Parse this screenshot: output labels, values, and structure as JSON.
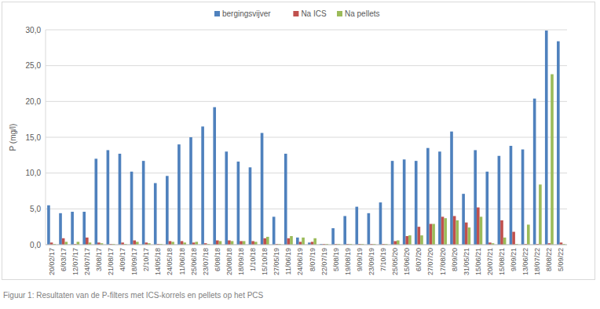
{
  "chart_data": {
    "type": "bar",
    "y_label": "P (mg/l)",
    "caption": "Figuur 1: Resultaten van de P-filters met ICS-korrels en pellets op het PCS",
    "categories": [
      "20/02/17",
      "6/03/17",
      "12/07/17",
      "24/07/17",
      "3/08/17",
      "21/08/17",
      "4/09/17",
      "18/09/17",
      "2/10/17",
      "14/05/18",
      "24/05/18",
      "11/06/18",
      "25/06/18",
      "23/07/18",
      "6/08/18",
      "20/08/18",
      "18/09/18",
      "1/10/18",
      "15/10/18",
      "27/05/19",
      "11/06/19",
      "24/06/19",
      "8/07/19",
      "22/07/19",
      "5/08/19",
      "19/08/19",
      "9/09/19",
      "23/09/19",
      "7/10/19",
      "25/05/20",
      "15/06/20",
      "6/07/20",
      "27/07/20",
      "17/08/20",
      "8/09/20",
      "31/05/21",
      "15/06/21",
      "20/07/21",
      "15/08/21",
      "9/09/21",
      "13/06/22",
      "18/07/22",
      "8/08/22",
      "5/09/22"
    ],
    "series": [
      {
        "name": "bergingsvijver",
        "color": "#4f81bd",
        "values": [
          5.5,
          4.4,
          4.6,
          4.6,
          12.0,
          13.2,
          12.7,
          10.2,
          11.7,
          8.6,
          9.6,
          14.0,
          15.0,
          16.5,
          19.2,
          13.0,
          11.6,
          10.8,
          15.6,
          3.9,
          12.7,
          1.0,
          0.3,
          0.1,
          2.3,
          4.0,
          5.3,
          4.4,
          5.9,
          11.7,
          11.9,
          11.7,
          13.5,
          13.0,
          15.8,
          7.1,
          13.2,
          10.2,
          12.4,
          13.8,
          13.3,
          20.4,
          29.9,
          28.4
        ]
      },
      {
        "name": "Na ICS",
        "color": "#c0504d",
        "values": [
          0.3,
          0.9,
          0.1,
          1.0,
          0.3,
          0.1,
          0.3,
          0.6,
          0.3,
          0.1,
          0.5,
          0.5,
          0.3,
          0.2,
          0.6,
          0.6,
          0.5,
          0.5,
          0.9,
          0.1,
          0.9,
          0.4,
          0.4,
          0.1,
          0.1,
          0.1,
          0.1,
          0.1,
          0.1,
          0.5,
          1.2,
          2.5,
          2.9,
          3.9,
          4.0,
          3.1,
          5.2,
          0.3,
          3.4,
          1.8,
          0.1,
          0.1,
          0.2,
          0.3
        ]
      },
      {
        "name": "Na pellets",
        "color": "#9bbb59",
        "values": [
          0.1,
          0.4,
          0.4,
          0.3,
          0.2,
          0.1,
          0.1,
          0.4,
          0.2,
          0.1,
          0.4,
          0.3,
          0.4,
          0.1,
          0.5,
          0.5,
          0.5,
          0.4,
          1.1,
          0.1,
          1.2,
          1.0,
          0.9,
          0.1,
          0.1,
          0.1,
          0.1,
          0.1,
          0.1,
          0.6,
          1.3,
          1.3,
          2.9,
          3.7,
          3.4,
          2.4,
          3.9,
          0.2,
          1.0,
          0.1,
          2.8,
          8.4,
          23.8,
          0.1
        ]
      }
    ],
    "ylim": [
      0,
      30
    ],
    "yticks": [
      {
        "value": 0,
        "label": "0,0"
      },
      {
        "value": 5,
        "label": "5,0"
      },
      {
        "value": 10,
        "label": "10,0"
      },
      {
        "value": 15,
        "label": "15,0"
      },
      {
        "value": 20,
        "label": "20,0"
      },
      {
        "value": 25,
        "label": "25,0"
      },
      {
        "value": 30,
        "label": "30,0"
      }
    ],
    "grid": true,
    "legend": "top"
  }
}
